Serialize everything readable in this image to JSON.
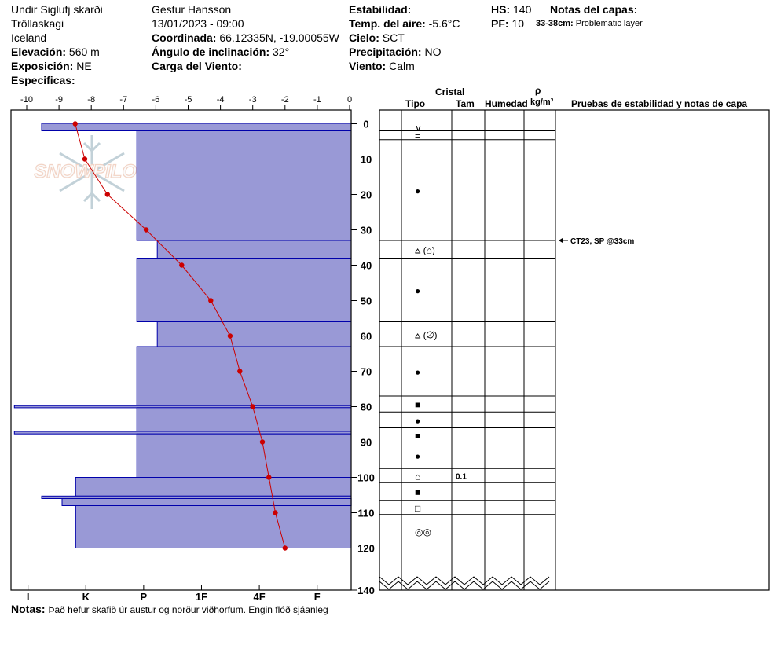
{
  "header": {
    "location": "Undir Siglufj skarði",
    "region": "Tröllaskagi",
    "country": "Iceland",
    "elevation_label": "Elevación:",
    "elevation_value": "560 m",
    "aspect_label": "Exposición:",
    "aspect_value": "NE",
    "specifics_label": "Especificas:",
    "observer": "Gestur Hansson",
    "datetime": "13/01/2023 - 09:00",
    "coord_label": "Coordinada:",
    "coord_value": "66.12335N, -19.00055W",
    "incline_label": "Ángulo de inclinación:",
    "incline_value": "32°",
    "wind_load_label": "Carga del Viento:",
    "stability_label": "Estabilidad:",
    "air_temp_label": "Temp. del aire:",
    "air_temp_value": "-5.6°C",
    "sky_label": "Cielo:",
    "sky_value": "SCT",
    "precip_label": "Precipitación:",
    "precip_value": "NO",
    "wind_label": "Viento:",
    "wind_value": "Calm",
    "hs_label": "HS:",
    "hs_value": "140",
    "pf_label": "PF:",
    "pf_value": "10",
    "layer_notes_label": "Notas del capas:",
    "layer_note_range": "33-38cm:",
    "layer_note_text": "Problematic layer"
  },
  "columns": {
    "crystal": "Cristal",
    "type": "Tipo",
    "size": "Tam",
    "moisture": "Humedad",
    "rho": "ρ",
    "density_unit": "kg/m³",
    "tests": "Pruebas de estabilidad y notas de capa"
  },
  "logo_text": "SNOWPILOT",
  "notes_label": "Notas:",
  "notes_text": "Það hefur skafið úr austur og norður viðhorfum. Engin flóð sjáanleg",
  "stability_test": {
    "text": "CT23, SP @33cm",
    "depth": 33
  },
  "colors": {
    "hardness_fill": "#9999d6",
    "hardness_stroke": "#0000aa",
    "temp_line": "#cc0000"
  },
  "chart_data": {
    "type": "snow_profile",
    "temp_axis": {
      "min": -10,
      "max": 0,
      "ticks": [
        "-10",
        "-9",
        "-8",
        "-7",
        "-6",
        "-5",
        "-4",
        "-3",
        "-2",
        "-1",
        "0"
      ]
    },
    "depth_axis": {
      "min": 0,
      "max": 140,
      "ticks": [
        "0",
        "10",
        "20",
        "30",
        "40",
        "50",
        "60",
        "70",
        "80",
        "90",
        "100",
        "110",
        "120",
        "140"
      ]
    },
    "hardness_axis": [
      "I",
      "K",
      "P",
      "1F",
      "4F",
      "F"
    ],
    "hardness_layers": [
      {
        "top": 0,
        "bottom": 2,
        "hardness_index": 9.1
      },
      {
        "top": 2,
        "bottom": 33,
        "hardness_index": 6.3
      },
      {
        "top": 33,
        "bottom": 38,
        "hardness_index": 5.7
      },
      {
        "top": 38,
        "bottom": 56,
        "hardness_index": 6.3
      },
      {
        "top": 56,
        "bottom": 63,
        "hardness_index": 5.7
      },
      {
        "top": 63,
        "bottom": 79.7,
        "hardness_index": 6.3
      },
      {
        "top": 79.7,
        "bottom": 80.3,
        "hardness_index": 9.9
      },
      {
        "top": 80.3,
        "bottom": 87,
        "hardness_index": 6.3
      },
      {
        "top": 87,
        "bottom": 87.7,
        "hardness_index": 9.9
      },
      {
        "top": 87.7,
        "bottom": 100,
        "hardness_index": 6.3
      },
      {
        "top": 100,
        "bottom": 105.3,
        "hardness_index": 8.1
      },
      {
        "top": 105.3,
        "bottom": 106,
        "hardness_index": 9.1
      },
      {
        "top": 106,
        "bottom": 108,
        "hardness_index": 8.5
      },
      {
        "top": 108,
        "bottom": 120,
        "hardness_index": 8.1
      }
    ],
    "temperature_profile": [
      {
        "depth": 0,
        "temp": -8.5
      },
      {
        "depth": 10,
        "temp": -8.2
      },
      {
        "depth": 20,
        "temp": -7.5
      },
      {
        "depth": 30,
        "temp": -6.3
      },
      {
        "depth": 40,
        "temp": -5.2
      },
      {
        "depth": 50,
        "temp": -4.3
      },
      {
        "depth": 60,
        "temp": -3.7
      },
      {
        "depth": 70,
        "temp": -3.4
      },
      {
        "depth": 80,
        "temp": -3.0
      },
      {
        "depth": 90,
        "temp": -2.7
      },
      {
        "depth": 100,
        "temp": -2.5
      },
      {
        "depth": 110,
        "temp": -2.3
      },
      {
        "depth": 120,
        "temp": -2.0
      }
    ],
    "layers": [
      {
        "top": 0,
        "bottom": 2,
        "grain": "∨",
        "size": ""
      },
      {
        "top": 2,
        "bottom": 4.5,
        "grain": "=",
        "size": ""
      },
      {
        "top": 4.5,
        "bottom": 33,
        "grain": "●",
        "size": ""
      },
      {
        "top": 33,
        "bottom": 38,
        "grain": "⩟ (⌂)",
        "size": ""
      },
      {
        "top": 38,
        "bottom": 56,
        "grain": "●",
        "size": ""
      },
      {
        "top": 56,
        "bottom": 63,
        "grain": "⩟ (⌀)",
        "size": ""
      },
      {
        "top": 63,
        "bottom": 77,
        "grain": "●",
        "size": ""
      },
      {
        "top": 77,
        "bottom": 81.5,
        "grain": "■",
        "size": ""
      },
      {
        "top": 81.5,
        "bottom": 86,
        "grain": "●",
        "size": ""
      },
      {
        "top": 86,
        "bottom": 90,
        "grain": "■",
        "size": ""
      },
      {
        "top": 90,
        "bottom": 97.5,
        "grain": "●",
        "size": ""
      },
      {
        "top": 97.5,
        "bottom": 101.5,
        "grain": "⌂",
        "size": "0.1"
      },
      {
        "top": 101.5,
        "bottom": 106.5,
        "grain": "■",
        "size": ""
      },
      {
        "top": 106.5,
        "bottom": 110.5,
        "grain": "□",
        "size": ""
      },
      {
        "top": 110.5,
        "bottom": 120,
        "grain": "◎◎",
        "size": ""
      }
    ]
  }
}
